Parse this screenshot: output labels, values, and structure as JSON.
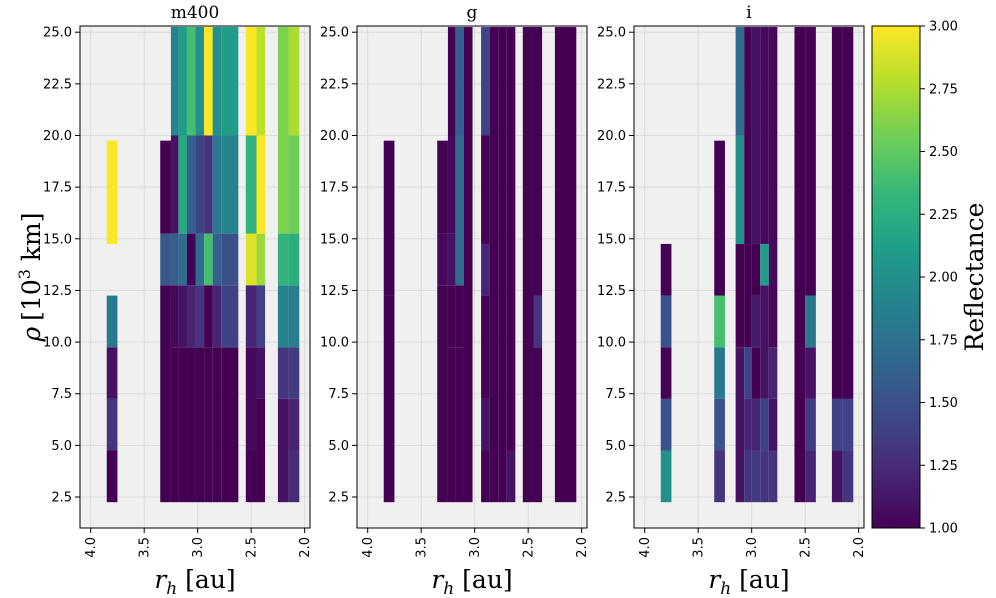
{
  "chart_data": {
    "type": "heatmap",
    "ylabel_main": "ρ",
    "ylabel_unit_pre": "[10",
    "ylabel_unit_exp": "3",
    "ylabel_unit_post": " km]",
    "xlabel_main": "r",
    "xlabel_sub": "h",
    "xlabel_unit": " [au]",
    "xlim": [
      4.1,
      1.95
    ],
    "ylim": [
      1.0,
      25.3
    ],
    "xticks": [
      4.0,
      3.5,
      3.0,
      2.5,
      2.0
    ],
    "xtick_labels": [
      "4.0",
      "3.5",
      "3.0",
      "2.5",
      "2.0"
    ],
    "yticks": [
      2.5,
      5.0,
      7.5,
      10.0,
      12.5,
      15.0,
      17.5,
      20.0,
      22.5,
      25.0
    ],
    "ytick_labels": [
      "2.5",
      "5.0",
      "7.5",
      "10.0",
      "12.5",
      "15.0",
      "17.5",
      "20.0",
      "22.5",
      "25.0"
    ],
    "colorbar": {
      "label": "Reflectance",
      "vmin": 1.0,
      "vmax": 3.0,
      "ticks": [
        1.0,
        1.25,
        1.5,
        1.75,
        2.0,
        2.25,
        2.5,
        2.75,
        3.0
      ],
      "tick_labels": [
        "1.00",
        "1.25",
        "1.50",
        "1.75",
        "2.00",
        "2.25",
        "2.50",
        "2.75",
        "3.00"
      ]
    },
    "panels": [
      {
        "title": "m400",
        "columns": [
          {
            "x0": 3.85,
            "x1": 3.75,
            "segments": [
              [
                2.25,
                4.75,
                1.0
              ],
              [
                4.75,
                7.25,
                1.3
              ],
              [
                7.25,
                9.75,
                1.1
              ],
              [
                9.75,
                12.25,
                1.8
              ],
              [
                14.75,
                19.75,
                3.0
              ]
            ]
          },
          {
            "x0": 3.35,
            "x1": 3.25,
            "segments": [
              [
                2.25,
                12.75,
                1.0
              ],
              [
                12.75,
                15.25,
                1.55
              ],
              [
                15.25,
                19.75,
                1.0
              ]
            ]
          },
          {
            "x0": 3.25,
            "x1": 3.18,
            "segments": [
              [
                2.25,
                9.75,
                1.0
              ],
              [
                9.75,
                12.75,
                1.05
              ],
              [
                12.75,
                15.25,
                1.6
              ],
              [
                15.25,
                20.0,
                1.1
              ],
              [
                20.0,
                25.25,
                1.9
              ]
            ]
          },
          {
            "x0": 3.18,
            "x1": 3.1,
            "segments": [
              [
                2.25,
                9.75,
                1.0
              ],
              [
                9.75,
                12.75,
                1.1
              ],
              [
                12.75,
                15.25,
                1.7
              ],
              [
                15.25,
                20.0,
                2.2
              ],
              [
                20.0,
                25.25,
                2.1
              ]
            ]
          },
          {
            "x0": 3.1,
            "x1": 3.02,
            "segments": [
              [
                2.25,
                9.75,
                1.0
              ],
              [
                9.75,
                12.75,
                1.2
              ],
              [
                12.75,
                15.25,
                1.0
              ],
              [
                15.25,
                20.0,
                1.6
              ],
              [
                20.0,
                25.25,
                2.4
              ]
            ]
          },
          {
            "x0": 3.02,
            "x1": 2.94,
            "segments": [
              [
                2.25,
                9.75,
                1.0
              ],
              [
                9.75,
                12.75,
                1.3
              ],
              [
                12.75,
                15.25,
                1.7
              ],
              [
                15.25,
                20.0,
                1.4
              ],
              [
                20.0,
                25.25,
                2.0
              ]
            ]
          },
          {
            "x0": 2.94,
            "x1": 2.86,
            "segments": [
              [
                2.25,
                9.75,
                1.0
              ],
              [
                9.75,
                12.75,
                1.0
              ],
              [
                12.75,
                15.25,
                2.4
              ],
              [
                15.25,
                20.0,
                1.3
              ],
              [
                20.0,
                25.25,
                3.0
              ]
            ]
          },
          {
            "x0": 2.86,
            "x1": 2.78,
            "segments": [
              [
                2.25,
                9.75,
                1.0
              ],
              [
                9.75,
                12.75,
                1.2
              ],
              [
                12.75,
                15.25,
                1.6
              ],
              [
                15.25,
                20.0,
                1.8
              ],
              [
                20.0,
                25.25,
                2.0
              ]
            ]
          },
          {
            "x0": 2.78,
            "x1": 2.62,
            "segments": [
              [
                2.25,
                9.75,
                1.0
              ],
              [
                9.75,
                12.75,
                1.4
              ],
              [
                12.75,
                15.25,
                1.5
              ],
              [
                15.25,
                20.0,
                1.9
              ],
              [
                20.0,
                25.25,
                2.1
              ]
            ]
          },
          {
            "x0": 2.55,
            "x1": 2.45,
            "segments": [
              [
                2.25,
                4.75,
                1.0
              ],
              [
                4.75,
                9.75,
                1.05
              ],
              [
                9.75,
                12.75,
                1.2
              ],
              [
                12.75,
                15.25,
                2.9
              ],
              [
                15.25,
                20.0,
                2.3
              ],
              [
                20.0,
                25.25,
                3.0
              ]
            ]
          },
          {
            "x0": 2.45,
            "x1": 2.37,
            "segments": [
              [
                2.25,
                4.75,
                1.0
              ],
              [
                4.75,
                7.25,
                1.0
              ],
              [
                7.25,
                9.75,
                1.1
              ],
              [
                9.75,
                12.75,
                1.4
              ],
              [
                12.75,
                15.25,
                2.7
              ],
              [
                15.25,
                20.0,
                3.0
              ],
              [
                20.0,
                25.25,
                2.8
              ]
            ]
          },
          {
            "x0": 2.25,
            "x1": 2.15,
            "segments": [
              [
                2.25,
                7.25,
                1.1
              ],
              [
                7.25,
                9.75,
                1.3
              ],
              [
                9.75,
                12.75,
                1.9
              ],
              [
                12.75,
                15.25,
                2.3
              ],
              [
                15.25,
                20.0,
                2.6
              ],
              [
                20.0,
                25.25,
                2.6
              ]
            ]
          },
          {
            "x0": 2.15,
            "x1": 2.05,
            "segments": [
              [
                2.25,
                4.75,
                1.25
              ],
              [
                4.75,
                7.25,
                1.2
              ],
              [
                7.25,
                9.75,
                1.35
              ],
              [
                9.75,
                12.75,
                1.85
              ],
              [
                12.75,
                15.25,
                2.25
              ],
              [
                15.25,
                20.0,
                2.55
              ],
              [
                20.0,
                25.25,
                2.75
              ]
            ]
          }
        ]
      },
      {
        "title": "g",
        "columns": [
          {
            "x0": 3.85,
            "x1": 3.75,
            "segments": [
              [
                2.25,
                12.25,
                1.0
              ],
              [
                12.25,
                19.75,
                1.0
              ]
            ]
          },
          {
            "x0": 3.35,
            "x1": 3.25,
            "segments": [
              [
                2.25,
                12.75,
                1.0
              ],
              [
                12.75,
                15.25,
                1.05
              ],
              [
                15.25,
                19.75,
                1.0
              ]
            ]
          },
          {
            "x0": 3.25,
            "x1": 3.18,
            "segments": [
              [
                2.25,
                9.75,
                1.0
              ],
              [
                9.75,
                12.75,
                1.0
              ],
              [
                12.75,
                15.25,
                1.1
              ],
              [
                15.25,
                20.0,
                1.05
              ],
              [
                20.0,
                25.25,
                1.0
              ]
            ]
          },
          {
            "x0": 3.18,
            "x1": 3.1,
            "segments": [
              [
                2.25,
                9.75,
                1.0
              ],
              [
                9.75,
                12.75,
                1.0
              ],
              [
                12.75,
                20.0,
                1.7
              ],
              [
                20.0,
                25.25,
                1.6
              ]
            ]
          },
          {
            "x0": 3.1,
            "x1": 3.02,
            "segments": [
              [
                2.25,
                25.25,
                1.0
              ]
            ]
          },
          {
            "x0": 2.94,
            "x1": 2.86,
            "segments": [
              [
                2.25,
                4.75,
                1.0
              ],
              [
                4.75,
                7.25,
                1.1
              ],
              [
                7.25,
                12.25,
                1.0
              ],
              [
                12.25,
                14.75,
                1.2
              ],
              [
                14.75,
                20.0,
                1.0
              ],
              [
                20.0,
                25.25,
                1.4
              ]
            ]
          },
          {
            "x0": 2.86,
            "x1": 2.78,
            "segments": [
              [
                2.25,
                25.25,
                1.0
              ]
            ]
          },
          {
            "x0": 2.78,
            "x1": 2.7,
            "segments": [
              [
                2.25,
                25.25,
                1.0
              ]
            ]
          },
          {
            "x0": 2.7,
            "x1": 2.62,
            "segments": [
              [
                2.25,
                4.75,
                1.1
              ],
              [
                4.75,
                25.25,
                1.0
              ]
            ]
          },
          {
            "x0": 2.55,
            "x1": 2.45,
            "segments": [
              [
                2.25,
                25.25,
                1.0
              ]
            ]
          },
          {
            "x0": 2.45,
            "x1": 2.37,
            "segments": [
              [
                2.25,
                9.75,
                1.0
              ],
              [
                9.75,
                12.25,
                1.3
              ],
              [
                12.25,
                25.25,
                1.0
              ]
            ]
          },
          {
            "x0": 2.25,
            "x1": 2.05,
            "segments": [
              [
                2.25,
                25.25,
                1.0
              ]
            ]
          }
        ]
      },
      {
        "title": "i",
        "columns": [
          {
            "x0": 3.85,
            "x1": 3.75,
            "segments": [
              [
                2.25,
                4.75,
                2.0
              ],
              [
                4.75,
                7.25,
                1.5
              ],
              [
                7.25,
                9.75,
                1.0
              ],
              [
                9.75,
                12.25,
                1.5
              ],
              [
                12.25,
                14.75,
                1.0
              ]
            ]
          },
          {
            "x0": 3.35,
            "x1": 3.25,
            "segments": [
              [
                2.25,
                4.75,
                1.3
              ],
              [
                4.75,
                7.25,
                1.5
              ],
              [
                7.25,
                9.75,
                1.8
              ],
              [
                9.75,
                12.25,
                2.4
              ],
              [
                12.25,
                19.75,
                1.0
              ]
            ]
          },
          {
            "x0": 3.15,
            "x1": 3.07,
            "segments": [
              [
                2.25,
                9.75,
                1.1
              ],
              [
                9.75,
                14.75,
                1.0
              ],
              [
                14.75,
                20.0,
                2.0
              ],
              [
                20.0,
                25.25,
                1.7
              ]
            ]
          },
          {
            "x0": 3.07,
            "x1": 3.0,
            "segments": [
              [
                2.25,
                4.75,
                1.3
              ],
              [
                4.75,
                7.25,
                1.2
              ],
              [
                7.25,
                9.75,
                1.4
              ],
              [
                9.75,
                25.25,
                1.0
              ]
            ]
          },
          {
            "x0": 3.0,
            "x1": 2.92,
            "segments": [
              [
                2.25,
                4.75,
                1.35
              ],
              [
                4.75,
                7.25,
                1.2
              ],
              [
                7.25,
                9.75,
                1.0
              ],
              [
                9.75,
                12.25,
                1.15
              ],
              [
                12.25,
                14.75,
                1.0
              ],
              [
                14.75,
                25.25,
                1.1
              ]
            ]
          },
          {
            "x0": 2.92,
            "x1": 2.84,
            "segments": [
              [
                2.25,
                4.75,
                1.3
              ],
              [
                4.75,
                7.25,
                1.4
              ],
              [
                7.25,
                12.75,
                1.1
              ],
              [
                12.75,
                14.75,
                2.1
              ],
              [
                14.75,
                25.25,
                1.05
              ]
            ]
          },
          {
            "x0": 2.84,
            "x1": 2.76,
            "segments": [
              [
                2.25,
                4.75,
                1.3
              ],
              [
                4.75,
                7.25,
                1.1
              ],
              [
                7.25,
                9.75,
                1.2
              ],
              [
                9.75,
                25.25,
                1.05
              ]
            ]
          },
          {
            "x0": 2.6,
            "x1": 2.5,
            "segments": [
              [
                2.25,
                25.25,
                1.0
              ]
            ]
          },
          {
            "x0": 2.5,
            "x1": 2.4,
            "segments": [
              [
                2.25,
                4.75,
                1.2
              ],
              [
                4.75,
                7.25,
                1.35
              ],
              [
                7.25,
                9.75,
                1.1
              ],
              [
                9.75,
                12.25,
                1.8
              ],
              [
                12.25,
                25.25,
                1.0
              ]
            ]
          },
          {
            "x0": 2.25,
            "x1": 2.15,
            "segments": [
              [
                2.25,
                4.75,
                1.1
              ],
              [
                4.75,
                7.25,
                1.4
              ],
              [
                7.25,
                25.25,
                1.0
              ]
            ]
          },
          {
            "x0": 2.15,
            "x1": 2.05,
            "segments": [
              [
                2.25,
                4.75,
                1.3
              ],
              [
                4.75,
                7.25,
                1.4
              ],
              [
                7.25,
                25.25,
                1.0
              ]
            ]
          }
        ]
      }
    ]
  }
}
